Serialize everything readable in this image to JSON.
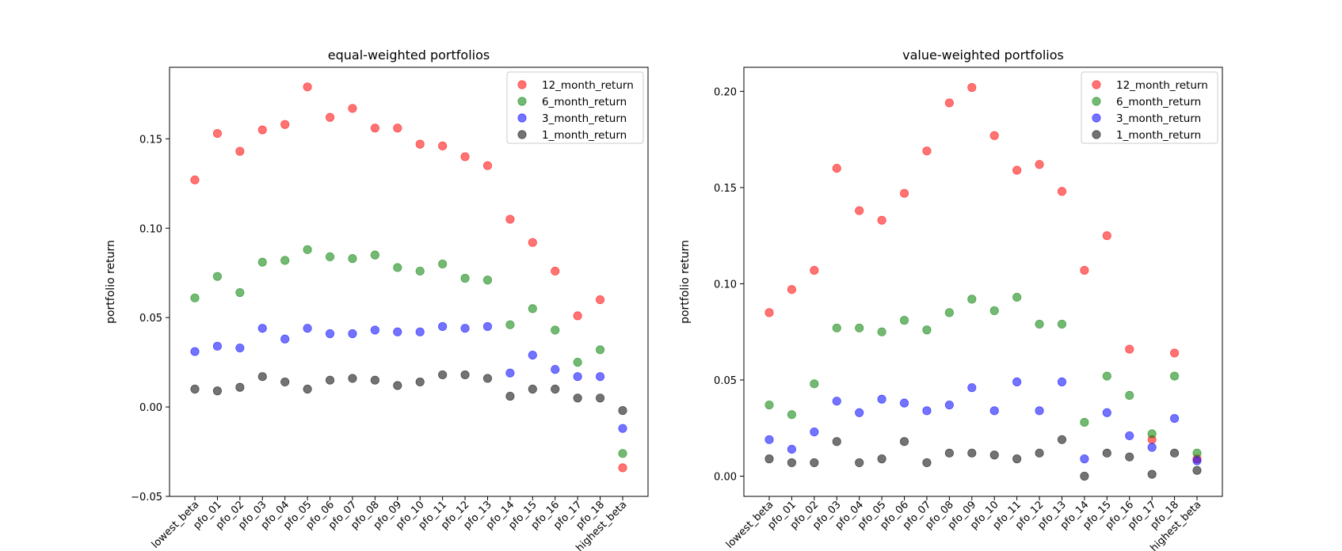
{
  "chart_data": [
    {
      "type": "scatter",
      "title": "equal-weighted portfolios",
      "xlabel": "",
      "ylabel": "portfolio return",
      "ylim": [
        -0.05,
        0.19
      ],
      "yticks": [
        -0.05,
        0.0,
        0.05,
        0.1,
        0.15
      ],
      "ytick_labels": [
        "−0.05",
        "0.00",
        "0.05",
        "0.10",
        "0.15"
      ],
      "legend_position": "top-right",
      "categories": [
        "lowest_beta",
        "pfo_01",
        "pfo_02",
        "pfo_03",
        "pfo_04",
        "pfo_05",
        "pfo_06",
        "pfo_07",
        "pfo_08",
        "pfo_09",
        "pfo_10",
        "pfo_11",
        "pfo_12",
        "pfo_13",
        "pfo_14",
        "pfo_15",
        "pfo_16",
        "pfo_17",
        "pfo_18",
        "highest_beta"
      ],
      "series": [
        {
          "name": "12_month_return",
          "color": "#ff0000",
          "values": [
            0.127,
            0.153,
            0.143,
            0.155,
            0.158,
            0.179,
            0.162,
            0.167,
            0.156,
            0.156,
            0.147,
            0.146,
            0.14,
            0.135,
            0.105,
            0.092,
            0.076,
            0.051,
            0.06,
            -0.034
          ]
        },
        {
          "name": "6_month_return",
          "color": "#008000",
          "values": [
            0.061,
            0.073,
            0.064,
            0.081,
            0.082,
            0.088,
            0.084,
            0.083,
            0.085,
            0.078,
            0.076,
            0.08,
            0.072,
            0.071,
            0.046,
            0.055,
            0.043,
            0.025,
            0.032,
            -0.026
          ]
        },
        {
          "name": "3_month_return",
          "color": "#0000ff",
          "values": [
            0.031,
            0.034,
            0.033,
            0.044,
            0.038,
            0.044,
            0.041,
            0.041,
            0.043,
            0.042,
            0.042,
            0.045,
            0.044,
            0.045,
            0.019,
            0.029,
            0.021,
            0.017,
            0.017,
            -0.012
          ]
        },
        {
          "name": "1_month_return",
          "color": "#000000",
          "values": [
            0.01,
            0.009,
            0.011,
            0.017,
            0.014,
            0.01,
            0.015,
            0.016,
            0.015,
            0.012,
            0.014,
            0.018,
            0.018,
            0.016,
            0.006,
            0.01,
            0.01,
            0.005,
            0.005,
            -0.002
          ]
        }
      ]
    },
    {
      "type": "scatter",
      "title": "value-weighted portfolios",
      "xlabel": "",
      "ylabel": "portfolio return",
      "ylim": [
        -0.0105,
        0.2125
      ],
      "yticks": [
        0.0,
        0.05,
        0.1,
        0.15,
        0.2
      ],
      "ytick_labels": [
        "0.00",
        "0.05",
        "0.10",
        "0.15",
        "0.20"
      ],
      "legend_position": "top-right",
      "categories": [
        "lowest_beta",
        "pfo_01",
        "pfo_02",
        "pfo_03",
        "pfo_04",
        "pfo_05",
        "pfo_06",
        "pfo_07",
        "pfo_08",
        "pfo_09",
        "pfo_10",
        "pfo_11",
        "pfo_12",
        "pfo_13",
        "pfo_14",
        "pfo_15",
        "pfo_16",
        "pfo_17",
        "pfo_18",
        "highest_beta"
      ],
      "series": [
        {
          "name": "12_month_return",
          "color": "#ff0000",
          "values": [
            0.085,
            0.097,
            0.107,
            0.16,
            0.138,
            0.133,
            0.147,
            0.169,
            0.194,
            0.202,
            0.177,
            0.159,
            0.162,
            0.148,
            0.107,
            0.125,
            0.066,
            0.019,
            0.064,
            0.009
          ]
        },
        {
          "name": "6_month_return",
          "color": "#008000",
          "values": [
            0.037,
            0.032,
            0.048,
            0.077,
            0.077,
            0.075,
            0.081,
            0.076,
            0.085,
            0.092,
            0.086,
            0.093,
            0.079,
            0.079,
            0.028,
            0.052,
            0.042,
            0.022,
            0.052,
            0.012
          ]
        },
        {
          "name": "3_month_return",
          "color": "#0000ff",
          "values": [
            0.019,
            0.014,
            0.023,
            0.039,
            0.033,
            0.04,
            0.038,
            0.034,
            0.037,
            0.046,
            0.034,
            0.049,
            0.034,
            0.049,
            0.009,
            0.033,
            0.021,
            0.015,
            0.03,
            0.008
          ]
        },
        {
          "name": "1_month_return",
          "color": "#000000",
          "values": [
            0.009,
            0.007,
            0.007,
            0.018,
            0.007,
            0.009,
            0.018,
            0.007,
            0.012,
            0.012,
            0.011,
            0.009,
            0.012,
            0.019,
            0.0,
            0.012,
            0.01,
            0.001,
            0.012,
            0.003
          ]
        }
      ]
    }
  ]
}
